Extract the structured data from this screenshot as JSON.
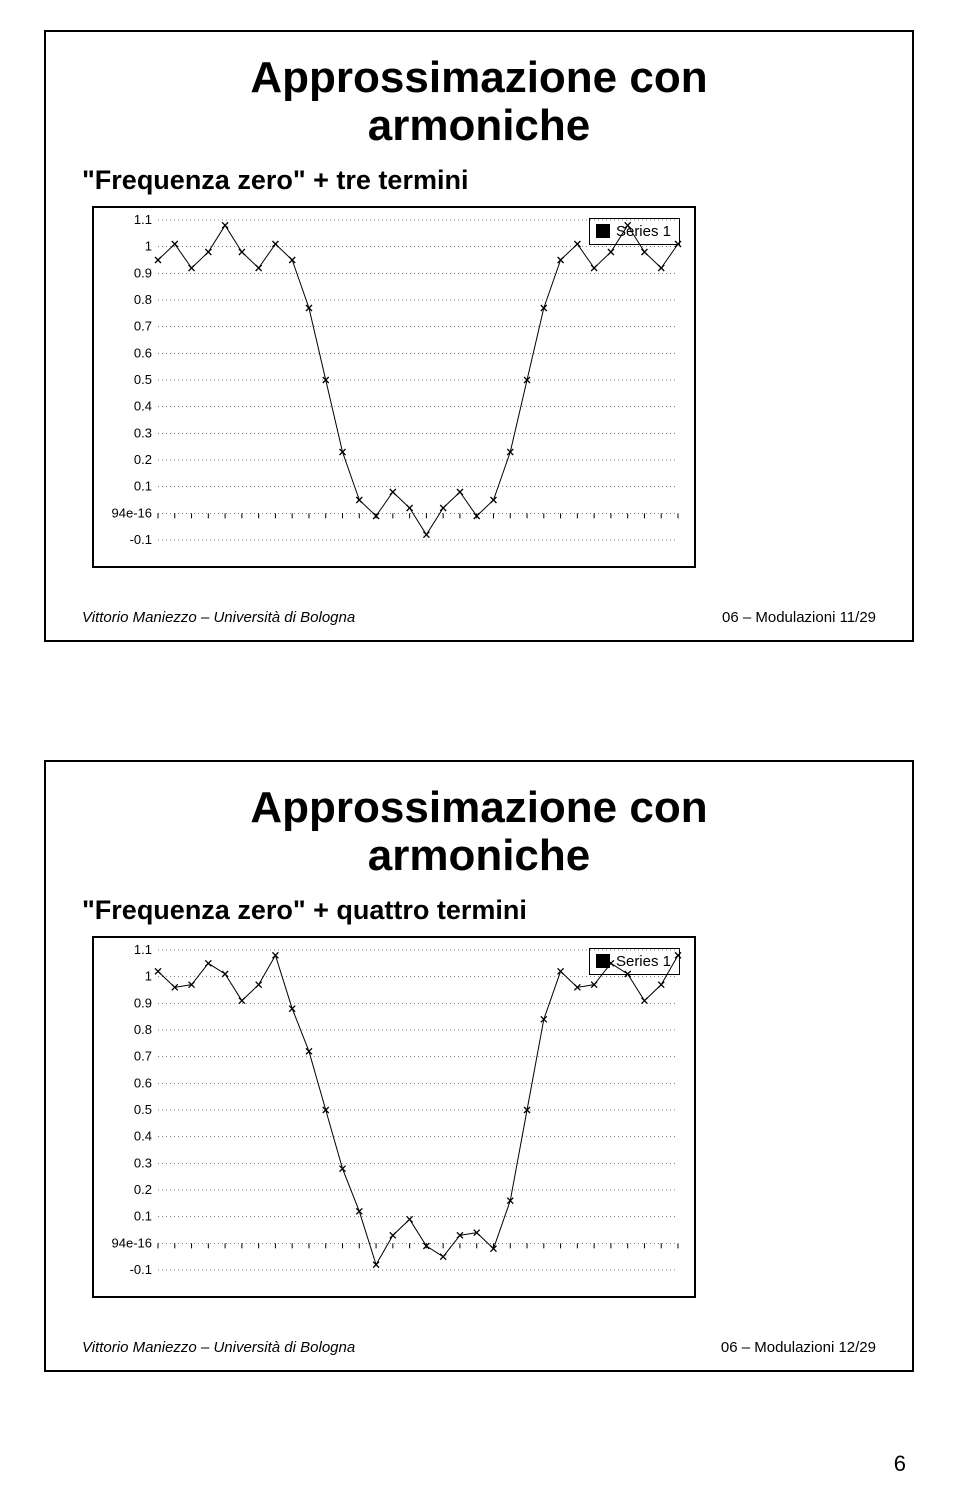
{
  "page_number": "6",
  "slides": [
    {
      "title_line1": "Approssimazione con",
      "title_line2": "armoniche",
      "subtitle": "\"Frequenza zero\" + tre termini",
      "footer_left": "Vittorio Maniezzo – Università di Bologna",
      "footer_right": "06 – Modulazioni 11/29",
      "chart": {
        "type": "line",
        "legend_label": "Series 1",
        "background_color": "#ffffff",
        "grid_color": "#000000",
        "line_color": "#000000",
        "marker": "x",
        "marker_size": 6,
        "line_width": 1,
        "ylim": [
          -0.1,
          1.1
        ],
        "y_ticks": [
          "1.1",
          "1",
          "0.9",
          "0.8",
          "0.7",
          "0.6",
          "0.5",
          "0.4",
          "0.3",
          "0.2",
          "0.1",
          "94e-16",
          "-0.1"
        ],
        "fontsize_ticks": 13,
        "n_points": 32,
        "values": [
          0.95,
          1.01,
          0.92,
          0.98,
          1.08,
          0.98,
          0.92,
          1.01,
          0.95,
          0.77,
          0.5,
          0.23,
          0.05,
          -0.01,
          0.08,
          0.02,
          -0.08,
          0.02,
          0.08,
          -0.01,
          0.05,
          0.23,
          0.5,
          0.77,
          0.95,
          1.01,
          0.92,
          0.98,
          1.08,
          0.98,
          0.92,
          1.01
        ]
      }
    },
    {
      "title_line1": "Approssimazione con",
      "title_line2": "armoniche",
      "subtitle": "\"Frequenza zero\" + quattro termini",
      "footer_left": "Vittorio Maniezzo – Università di Bologna",
      "footer_right": "06 – Modulazioni 12/29",
      "chart": {
        "type": "line",
        "legend_label": "Series 1",
        "background_color": "#ffffff",
        "grid_color": "#000000",
        "line_color": "#000000",
        "marker": "x",
        "marker_size": 6,
        "line_width": 1,
        "ylim": [
          -0.1,
          1.1
        ],
        "y_ticks": [
          "1.1",
          "1",
          "0.9",
          "0.8",
          "0.7",
          "0.6",
          "0.5",
          "0.4",
          "0.3",
          "0.2",
          "0.1",
          "94e-16",
          "-0.1"
        ],
        "fontsize_ticks": 13,
        "n_points": 32,
        "values": [
          1.02,
          0.96,
          0.97,
          1.05,
          1.01,
          0.91,
          0.97,
          1.08,
          0.88,
          0.72,
          0.5,
          0.28,
          0.12,
          -0.08,
          0.03,
          0.09,
          -0.01,
          -0.05,
          0.03,
          0.04,
          -0.02,
          0.16,
          0.5,
          0.84,
          1.02,
          0.96,
          0.97,
          1.05,
          1.01,
          0.91,
          0.97,
          1.08
        ]
      }
    }
  ]
}
